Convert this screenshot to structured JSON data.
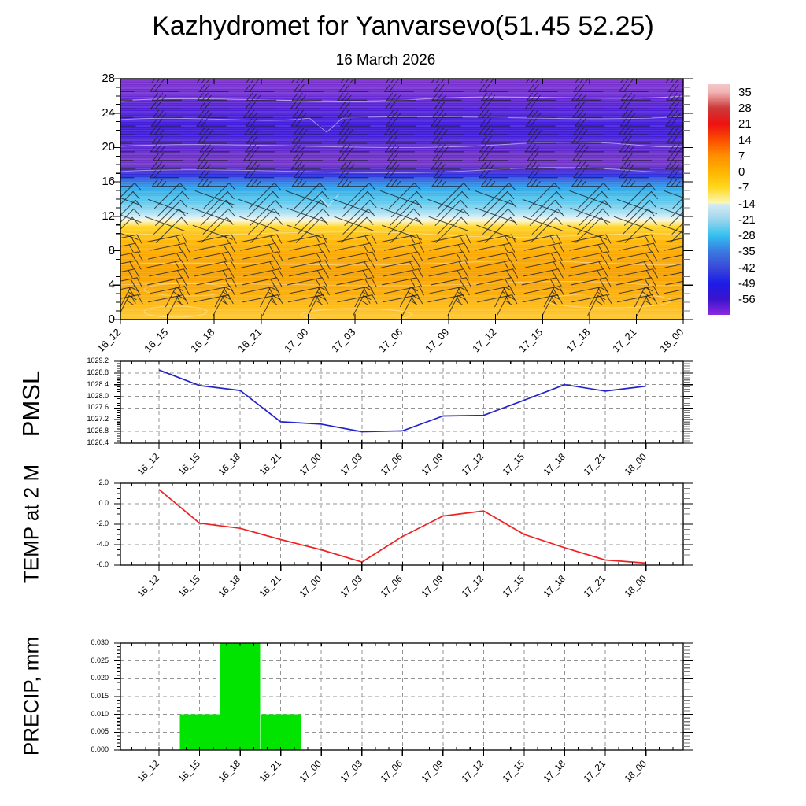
{
  "title": "Kazhydromet for Yanvarsevo(51.45 52.25)",
  "subtitle": "16 March 2026",
  "time_labels": [
    "16_12",
    "16_15",
    "16_18",
    "16_21",
    "17_00",
    "17_03",
    "17_06",
    "17_09",
    "17_12",
    "17_15",
    "17_18",
    "17_21",
    "18_00"
  ],
  "chart_data": [
    {
      "type": "heatmap",
      "name": "wind-temperature-cross-section",
      "x": [
        "16_12",
        "16_15",
        "16_18",
        "16_21",
        "17_00",
        "17_03",
        "17_06",
        "17_09",
        "17_12",
        "17_15",
        "17_18",
        "17_21",
        "18_00"
      ],
      "ylim": [
        0,
        28
      ],
      "yticks": [
        28,
        24,
        20,
        16,
        12,
        8,
        4,
        0
      ],
      "ytick_labels": [
        "28",
        "24",
        "20",
        "16",
        "12",
        "8",
        "4",
        "0"
      ],
      "grid": false,
      "colorbar": {
        "levels": [
          35,
          28,
          21,
          14,
          7,
          0,
          -7,
          -14,
          -21,
          -28,
          -35,
          -42,
          -49,
          -56
        ],
        "labels": [
          "35",
          "28",
          "21",
          "14",
          "7",
          "0",
          "-7",
          "-14",
          "-21",
          "-28",
          "-35",
          "-42",
          "-49",
          "-56"
        ],
        "colors": [
          "#f2b4b4",
          "#cc3a3a",
          "#ee1111",
          "#fb4e00",
          "#ff8e00",
          "#ffb400",
          "#ffd91e",
          "#fbf6b4",
          "#9cd6ec",
          "#33c1f0",
          "#3a7ae0",
          "#3a4ad8",
          "#1c1ce8",
          "#3a14cc"
        ],
        "top_color": "#f4c6c6",
        "bottom_color": "#8a28e0",
        "below_color_at_minus14": "#d4ebf4"
      },
      "gradient": [
        {
          "h": 0,
          "color": "#ffc92c"
        },
        {
          "h": 0.8,
          "color": "#ffc224"
        },
        {
          "h": 2,
          "color": "#fdb713"
        },
        {
          "h": 3.5,
          "color": "#faa903"
        },
        {
          "h": 5.5,
          "color": "#f8a200"
        },
        {
          "h": 7.5,
          "color": "#fba800"
        },
        {
          "h": 9,
          "color": "#ffb607"
        },
        {
          "h": 10.3,
          "color": "#ffc815"
        },
        {
          "h": 10.85,
          "color": "#ffd834"
        },
        {
          "h": 11.15,
          "color": "#fce67e"
        },
        {
          "h": 11.45,
          "color": "#fdf5c0"
        },
        {
          "h": 11.75,
          "color": "#e9f3ec"
        },
        {
          "h": 12.1,
          "color": "#c6eaf5"
        },
        {
          "h": 12.6,
          "color": "#9edcf2"
        },
        {
          "h": 13.2,
          "color": "#76d0ee"
        },
        {
          "h": 14.2,
          "color": "#49c1ec"
        },
        {
          "h": 15.3,
          "color": "#2fa5e8"
        },
        {
          "h": 16.0,
          "color": "#2f7ce4"
        },
        {
          "h": 16.5,
          "color": "#2e46de"
        },
        {
          "h": 17.0,
          "color": "#3226d8"
        },
        {
          "h": 17.6,
          "color": "#5e2ccd"
        },
        {
          "h": 18.3,
          "color": "#7433c6"
        },
        {
          "h": 19.5,
          "color": "#642acb"
        },
        {
          "h": 20.5,
          "color": "#5123d3"
        },
        {
          "h": 21.5,
          "color": "#3f1cd9"
        },
        {
          "h": 23,
          "color": "#421bdc"
        },
        {
          "h": 24.5,
          "color": "#521fda"
        },
        {
          "h": 26,
          "color": "#6b2ad3"
        },
        {
          "h": 28,
          "color": "#7d31cd"
        }
      ],
      "wind_profile": [
        {
          "h_min": 0,
          "h_max": 2.5,
          "type": "low"
        },
        {
          "h_min": 2.5,
          "h_max": 10.5,
          "type": "sfc"
        },
        {
          "h_min": 10.5,
          "h_max": 15.5,
          "type": "shear"
        },
        {
          "h_min": 15.5,
          "h_max": 28,
          "type": "upper"
        }
      ],
      "barb_color": "#1c1f28"
    },
    {
      "type": "line",
      "ylabel": "PMSL",
      "color": "#2323cc",
      "x": [
        "16_12",
        "16_15",
        "16_18",
        "16_21",
        "17_00",
        "17_03",
        "17_06",
        "17_09",
        "17_12",
        "17_15",
        "17_18",
        "17_21",
        "18_00"
      ],
      "values": [
        1028.9,
        1028.37,
        1028.2,
        1027.13,
        1027.05,
        1026.79,
        1026.82,
        1027.33,
        1027.35,
        1027.87,
        1028.4,
        1028.18,
        1028.35
      ],
      "ylim": [
        1026.4,
        1029.2
      ],
      "yticks": [
        1029.2,
        1028.8,
        1028.4,
        1028.0,
        1027.6,
        1027.2,
        1026.8,
        1026.4
      ],
      "ytick_labels": [
        "1029.2",
        "1028.8",
        "1028.4",
        "1028.0",
        "1027.6",
        "1027.2",
        "1026.8",
        "1026.4"
      ],
      "grid_yticks": [
        1028.8,
        1028.4,
        1028.0,
        1027.6,
        1027.2,
        1026.8
      ],
      "minor_step": 0.08
    },
    {
      "type": "line",
      "ylabel": "TEMP at 2 M",
      "color": "#ee2222",
      "x": [
        "16_12",
        "16_15",
        "16_18",
        "16_21",
        "17_00",
        "17_03",
        "17_06",
        "17_09",
        "17_12",
        "17_15",
        "17_18",
        "17_21",
        "18_00"
      ],
      "values": [
        1.4,
        -1.9,
        -2.4,
        -3.5,
        -4.5,
        -5.7,
        -3.2,
        -1.2,
        -0.7,
        -3.0,
        -4.3,
        -5.5,
        -5.8
      ],
      "ylim": [
        -6.0,
        2.0
      ],
      "yticks": [
        2.0,
        0.0,
        -2.0,
        -4.0,
        -6.0
      ],
      "ytick_labels": [
        "2.0",
        "0.0",
        "-2.0",
        "-4.0",
        "-6.0"
      ],
      "grid_yticks": [
        0.0,
        -2.0,
        -4.0
      ],
      "minor_step": 0.5
    },
    {
      "type": "bar",
      "ylabel": "PRECIP, mm",
      "color": "#00e400",
      "x": [
        "16_12",
        "16_15",
        "16_18",
        "16_21",
        "17_00",
        "17_03",
        "17_06",
        "17_09",
        "17_12",
        "17_15",
        "17_18",
        "17_21",
        "18_00"
      ],
      "values": [
        0,
        0.01,
        0.03,
        0.01,
        0,
        0,
        0,
        0,
        0,
        0,
        0,
        0,
        0
      ],
      "ylim": [
        0.0,
        0.03
      ],
      "yticks": [
        0.03,
        0.025,
        0.02,
        0.015,
        0.01,
        0.005,
        0.0
      ],
      "ytick_labels": [
        "0.030",
        "0.025",
        "0.020",
        "0.015",
        "0.010",
        "0.005",
        "0.000"
      ],
      "grid_yticks": [
        0.025,
        0.02,
        0.015,
        0.01,
        0.005
      ],
      "minor_step": 0.001
    }
  ]
}
